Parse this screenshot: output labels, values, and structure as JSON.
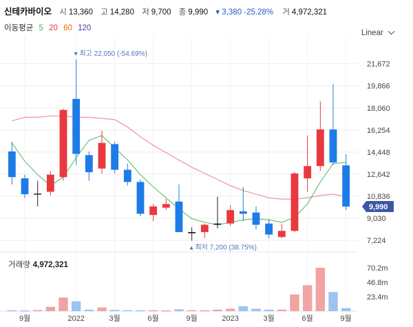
{
  "header": {
    "stock_name": "신테카바이오",
    "open_label": "시",
    "open": "13,360",
    "high_label": "고",
    "high": "14,280",
    "low_label": "저",
    "low": "9,700",
    "close_label": "종",
    "close": "9,990",
    "change": "▾ 3,380 -25.28%",
    "volume_label": "거",
    "volume": "4,972,321"
  },
  "moving_average": {
    "label": "이동평균",
    "periods": [
      "5",
      "20",
      "60",
      "120"
    ],
    "colors": [
      "#4caf50",
      "#e53935",
      "#ef6c00",
      "#5e35b1"
    ]
  },
  "scale_button": "Linear",
  "colors": {
    "up": "#e8393f",
    "down": "#1e7ce8",
    "ma5": "#5bbd6a",
    "ma20": "#f08b8b"
  },
  "chart_data": {
    "type": "candlestick",
    "y_ticks": [
      "21,672",
      "19,866",
      "18,060",
      "16,254",
      "14,448",
      "12,642",
      "10,836",
      "9,030",
      "7,224"
    ],
    "ylim": [
      6500,
      23400
    ],
    "current_price_label": "9,990",
    "high_annotation": "▾ 최고 22,050 (-54.69%)",
    "low_annotation": "▴ 최저 7,200 (38.75%)",
    "x_ticks": [
      {
        "label": "9월",
        "index": 1
      },
      {
        "label": "2022",
        "index": 5
      },
      {
        "label": "3월",
        "index": 8
      },
      {
        "label": "6월",
        "index": 11
      },
      {
        "label": "9월",
        "index": 14
      },
      {
        "label": "2023",
        "index": 17
      },
      {
        "label": "3월",
        "index": 20
      },
      {
        "label": "6월",
        "index": 23
      },
      {
        "label": "9월",
        "index": 26
      }
    ],
    "candles": [
      {
        "o": 14500,
        "h": 15300,
        "l": 11800,
        "c": 12400
      },
      {
        "o": 12300,
        "h": 12600,
        "l": 10700,
        "c": 11000
      },
      {
        "o": 11000,
        "h": 12100,
        "l": 10000,
        "c": 11050
      },
      {
        "o": 11200,
        "h": 12900,
        "l": 10900,
        "c": 12600
      },
      {
        "o": 12400,
        "h": 18000,
        "l": 12100,
        "c": 17900
      },
      {
        "o": 18800,
        "h": 22050,
        "l": 13400,
        "c": 14300
      },
      {
        "o": 14200,
        "h": 14500,
        "l": 12100,
        "c": 12800
      },
      {
        "o": 13100,
        "h": 16200,
        "l": 12700,
        "c": 15200
      },
      {
        "o": 15100,
        "h": 15300,
        "l": 12700,
        "c": 13000
      },
      {
        "o": 13000,
        "h": 13500,
        "l": 11700,
        "c": 12000
      },
      {
        "o": 12000,
        "h": 12200,
        "l": 9200,
        "c": 9400
      },
      {
        "o": 9300,
        "h": 10200,
        "l": 8800,
        "c": 10000
      },
      {
        "o": 9900,
        "h": 10600,
        "l": 9700,
        "c": 10200
      },
      {
        "o": 10400,
        "h": 11800,
        "l": 7900,
        "c": 7900
      },
      {
        "o": 7800,
        "h": 8300,
        "l": 7200,
        "c": 7900
      },
      {
        "o": 7900,
        "h": 8600,
        "l": 7400,
        "c": 8500
      },
      {
        "o": 8500,
        "h": 10800,
        "l": 8200,
        "c": 8600
      },
      {
        "o": 8600,
        "h": 10100,
        "l": 8400,
        "c": 9700
      },
      {
        "o": 9600,
        "h": 11600,
        "l": 8800,
        "c": 9400
      },
      {
        "o": 9500,
        "h": 10000,
        "l": 8100,
        "c": 8500
      },
      {
        "o": 8600,
        "h": 9000,
        "l": 7400,
        "c": 7700
      },
      {
        "o": 7500,
        "h": 8600,
        "l": 7400,
        "c": 8000
      },
      {
        "o": 8000,
        "h": 12800,
        "l": 7900,
        "c": 12700
      },
      {
        "o": 12300,
        "h": 15800,
        "l": 11200,
        "c": 13300
      },
      {
        "o": 13300,
        "h": 18600,
        "l": 12900,
        "c": 16300
      },
      {
        "o": 16300,
        "h": 20000,
        "l": 13400,
        "c": 13600
      },
      {
        "o": 13360,
        "h": 14280,
        "l": 9700,
        "c": 9990
      }
    ],
    "ma5": [
      15200,
      13700,
      12600,
      11700,
      12400,
      14000,
      15400,
      15800,
      14800,
      13800,
      12600,
      11600,
      10700,
      9800,
      9000,
      8700,
      8500,
      8700,
      8900,
      9000,
      8900,
      8700,
      9100,
      10200,
      12000,
      13500,
      13600
    ],
    "ma20": [
      17000,
      17300,
      17300,
      17400,
      17400,
      17300,
      17300,
      17200,
      17100,
      16500,
      15700,
      15000,
      14400,
      13800,
      13200,
      12700,
      12200,
      11700,
      11300,
      11000,
      10700,
      10600,
      10600,
      10700,
      10900,
      11000,
      10800
    ],
    "volume": {
      "ticks": [
        "70.2m",
        "46.8m",
        "23.4m"
      ],
      "ymax": 80,
      "values_m": [
        1.5,
        1.2,
        1.8,
        7.0,
        22.0,
        16.0,
        2.5,
        6.0,
        2.0,
        1.5,
        1.5,
        1.5,
        1.2,
        3.0,
        1.5,
        1.5,
        2.5,
        4.0,
        8.0,
        4.0,
        2.5,
        2.5,
        27.0,
        42.0,
        70.0,
        31.0,
        4.97
      ]
    }
  }
}
